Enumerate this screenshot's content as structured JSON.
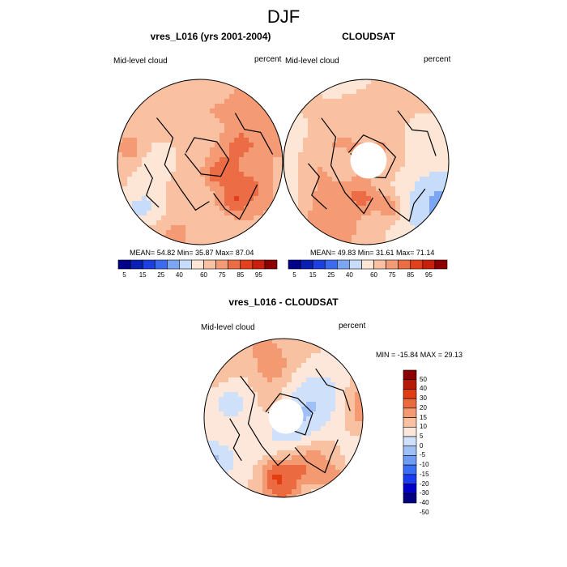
{
  "figure": {
    "title": "DJF"
  },
  "colors": {
    "abs_palette": [
      "#00008b",
      "#0a1fb4",
      "#1c3fe0",
      "#3b6cf0",
      "#7aa6f3",
      "#c6dcfa",
      "#fde6d6",
      "#f9c1a2",
      "#f49a74",
      "#ec6c45",
      "#e3411d",
      "#c8200c",
      "#8b0000"
    ],
    "diff_palette": [
      "#000080",
      "#0000c8",
      "#1b3cf0",
      "#3a6ef5",
      "#6e9cf5",
      "#9ec0f7",
      "#cfe0fa",
      "#fde7da",
      "#f8c2a2",
      "#f39a72",
      "#ec6a40",
      "#e23c12",
      "#b81a08",
      "#8b0000"
    ],
    "coast": "#000000"
  },
  "chart_data": [
    {
      "type": "heatmap",
      "projection": "polar stereographic (north)",
      "title": "vres_L016 (yrs 2001-2004)",
      "left_label": "Mid-level cloud",
      "right_label": "percent",
      "stats": "MEAN=  54.82  Min=  35.87  Max=  87.04",
      "mean": 54.82,
      "min": 35.87,
      "max": 87.04,
      "colorbar_ticks": [
        "5",
        "15",
        "25",
        "40",
        "60",
        "75",
        "85",
        "95"
      ],
      "pole_hole": false
    },
    {
      "type": "heatmap",
      "projection": "polar stereographic (north)",
      "title": "CLOUDSAT",
      "left_label": "Mid-level cloud",
      "right_label": "percent",
      "stats": "MEAN=  49.83  Min=  31.61  Max=  71.14",
      "mean": 49.83,
      "min": 31.61,
      "max": 71.14,
      "colorbar_ticks": [
        "5",
        "15",
        "25",
        "40",
        "60",
        "75",
        "85",
        "95"
      ],
      "pole_hole": true
    },
    {
      "type": "heatmap",
      "projection": "polar stereographic (north)",
      "title": "vres_L016 - CLOUDSAT",
      "left_label": "Mid-level cloud",
      "right_label": "percent",
      "stats": "MIN = -15.84 MAX =  29.13",
      "min": -15.84,
      "max": 29.13,
      "colorbar_ticks": [
        "50",
        "40",
        "30",
        "20",
        "15",
        "10",
        "5",
        "0",
        "-5",
        "-10",
        "-15",
        "-20",
        "-30",
        "-40",
        "-50"
      ],
      "pole_hole": true
    }
  ]
}
